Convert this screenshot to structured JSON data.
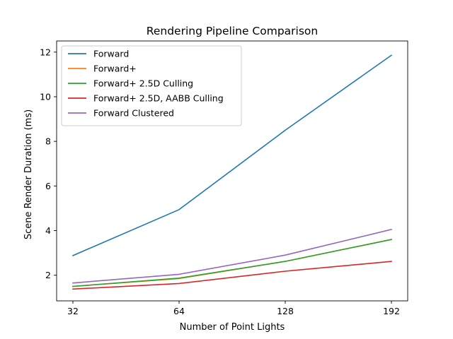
{
  "chart_data": {
    "type": "line",
    "title": "Rendering Pipeline Comparison",
    "xlabel": "Number of Point Lights",
    "ylabel": "Scene Render Duration (ms)",
    "categories": [
      "32",
      "64",
      "128",
      "192"
    ],
    "ylim": [
      0.85,
      12.5
    ],
    "yticks": [
      2,
      4,
      6,
      8,
      10,
      12
    ],
    "grid": false,
    "legend_position": "top-left",
    "series": [
      {
        "name": "Forward",
        "color": "#1f77b4",
        "values": [
          2.88,
          4.94,
          8.5,
          11.86
        ]
      },
      {
        "name": "Forward+",
        "color": "#ff7f0e",
        "values": [
          1.5,
          1.85,
          2.62,
          3.6
        ]
      },
      {
        "name": "Forward+ 2.5D Culling",
        "color": "#2ca02c",
        "values": [
          1.5,
          1.87,
          2.62,
          3.6
        ]
      },
      {
        "name": "Forward+ 2.5D, AABB Culling",
        "color": "#d62728",
        "values": [
          1.38,
          1.63,
          2.18,
          2.62
        ]
      },
      {
        "name": "Forward Clustered",
        "color": "#9467bd",
        "values": [
          1.65,
          2.04,
          2.9,
          4.05
        ]
      }
    ]
  }
}
